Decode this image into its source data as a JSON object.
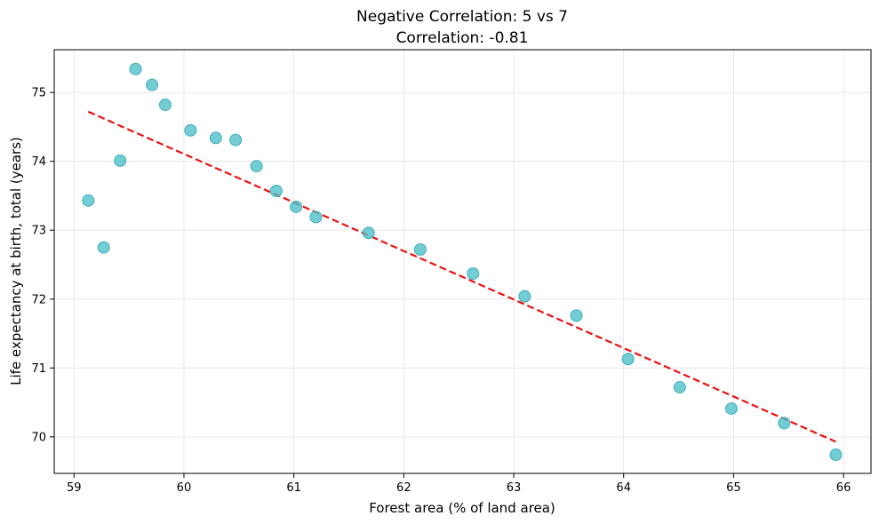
{
  "chart_data": {
    "type": "scatter",
    "title": "Negative Correlation: 5 vs 7",
    "subtitle": "Correlation: -0.81",
    "xlabel": "Forest area (% of land area)",
    "ylabel": "Life expectancy at birth, total (years)",
    "xlim": [
      58.82,
      66.25
    ],
    "ylim": [
      69.47,
      75.62
    ],
    "xticks": [
      59,
      60,
      61,
      62,
      63,
      64,
      65,
      66
    ],
    "yticks": [
      70,
      71,
      72,
      73,
      74,
      75
    ],
    "grid": true,
    "colors": {
      "points": "#4ABFC9",
      "trend": "#ee1111"
    },
    "points": [
      {
        "x": 59.13,
        "y": 73.43
      },
      {
        "x": 59.27,
        "y": 72.75
      },
      {
        "x": 59.42,
        "y": 74.01
      },
      {
        "x": 59.56,
        "y": 75.34
      },
      {
        "x": 59.71,
        "y": 75.11
      },
      {
        "x": 59.83,
        "y": 74.82
      },
      {
        "x": 60.06,
        "y": 74.45
      },
      {
        "x": 60.29,
        "y": 74.34
      },
      {
        "x": 60.47,
        "y": 74.31
      },
      {
        "x": 60.66,
        "y": 73.93
      },
      {
        "x": 60.84,
        "y": 73.57
      },
      {
        "x": 61.02,
        "y": 73.34
      },
      {
        "x": 61.2,
        "y": 73.19
      },
      {
        "x": 61.68,
        "y": 72.96
      },
      {
        "x": 62.15,
        "y": 72.72
      },
      {
        "x": 62.63,
        "y": 72.37
      },
      {
        "x": 63.1,
        "y": 72.04
      },
      {
        "x": 63.57,
        "y": 71.76
      },
      {
        "x": 64.04,
        "y": 71.13
      },
      {
        "x": 64.51,
        "y": 70.72
      },
      {
        "x": 64.98,
        "y": 70.41
      },
      {
        "x": 65.46,
        "y": 70.2
      },
      {
        "x": 65.93,
        "y": 69.74
      }
    ],
    "trendline": {
      "x": [
        59.13,
        65.93
      ],
      "y": [
        74.72,
        69.93
      ]
    }
  }
}
